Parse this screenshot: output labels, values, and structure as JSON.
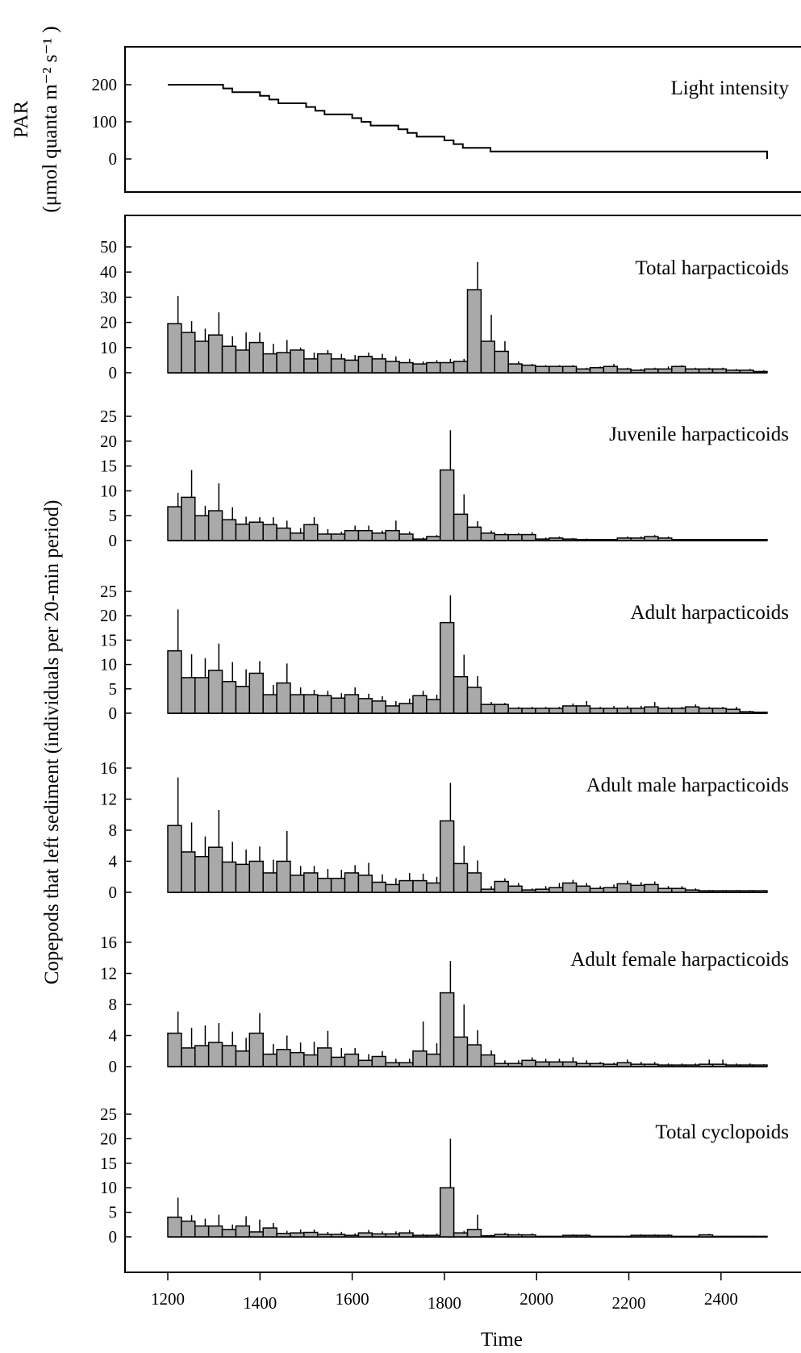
{
  "colors": {
    "bar_fill": "#a9a9a9",
    "line": "#000000",
    "background": "#ffffff"
  },
  "x_axis": {
    "label": "Time",
    "ticks": [
      1200,
      1400,
      1600,
      1800,
      2000,
      2200,
      2400
    ],
    "tick_labels": [
      "1200",
      "1400",
      "1600",
      "1800",
      "2000",
      "2200",
      "2400"
    ]
  },
  "y_axis_labels": {
    "par": "PAR",
    "par_units": "(μmol quanta m⁻² s⁻¹ )",
    "copepods": "Copepods that left sediment (individuals per 20-min period)"
  },
  "chart_data": [
    {
      "type": "line",
      "title": "Light intensity",
      "ylabel": "PAR",
      "yunits": "(μmol quanta m⁻² s⁻¹ )",
      "yticks": [
        0,
        100,
        200
      ],
      "ylim": [
        0,
        200
      ],
      "x": [
        1200,
        1300,
        1320,
        1340,
        1400,
        1420,
        1440,
        1500,
        1520,
        1540,
        1600,
        1620,
        1640,
        1700,
        1720,
        1740,
        1800,
        1820,
        1840,
        1900,
        2500
      ],
      "y": [
        200,
        200,
        190,
        180,
        170,
        160,
        150,
        140,
        130,
        120,
        110,
        100,
        90,
        80,
        70,
        60,
        50,
        40,
        30,
        20,
        0
      ]
    },
    {
      "type": "bar",
      "title": "Total harpacticoids",
      "yticks": [
        0,
        10,
        20,
        30,
        40,
        50
      ],
      "ylim": [
        0,
        50
      ],
      "x_start": 1200,
      "bin_width_min": 20,
      "values": [
        19.5,
        16,
        12.5,
        15,
        10.5,
        9,
        12,
        7.5,
        8,
        9,
        5.5,
        7.5,
        5.5,
        5,
        6.5,
        5.5,
        4.5,
        4,
        3.5,
        4,
        4,
        4.5,
        33,
        12.5,
        8.5,
        3.5,
        3,
        2.5,
        2.5,
        2.5,
        1.5,
        2,
        2.5,
        1.5,
        1,
        1.5,
        1.5,
        2.5,
        1.5,
        1.5,
        1.5,
        1,
        1,
        0.5
      ],
      "errors": [
        11,
        4.5,
        5,
        9,
        4,
        7,
        4,
        4,
        5,
        1,
        2.5,
        1.5,
        2,
        2,
        1.5,
        2,
        2,
        1.5,
        1,
        1,
        1.5,
        1,
        11,
        10.5,
        4,
        1,
        0.5,
        0.5,
        0.5,
        0.5,
        0.5,
        0.5,
        1,
        0.5,
        0.5,
        0.5,
        1,
        0.5,
        0.5,
        0.5,
        0.5,
        0.5,
        0.5,
        0.5
      ]
    },
    {
      "type": "bar",
      "title": "Juvenile harpacticoids",
      "yticks": [
        0,
        5,
        10,
        15,
        20,
        25
      ],
      "ylim": [
        0,
        25
      ],
      "x_start": 1200,
      "bin_width_min": 20,
      "values": [
        6.8,
        8.7,
        5,
        6,
        4.2,
        3.3,
        3.7,
        3.2,
        2.5,
        1.5,
        3.2,
        1.3,
        1.3,
        2,
        2,
        1.5,
        2,
        1.3,
        0.3,
        0.8,
        14.2,
        5.3,
        2.7,
        1.5,
        1.2,
        1.2,
        1.2,
        0.3,
        0.5,
        0.3,
        0.2,
        0.2,
        0.2,
        0.5,
        0.5,
        0.8,
        0.5,
        0.2,
        0.2,
        0.2,
        0.2,
        0.2,
        0.2,
        0.2
      ],
      "errors": [
        2.8,
        5.5,
        2,
        5.5,
        2.5,
        1.5,
        1,
        1.5,
        1.5,
        1,
        1.5,
        1,
        0.5,
        1,
        1,
        0.5,
        2,
        0.5,
        0.3,
        0.3,
        8,
        4,
        1.2,
        0.5,
        0.3,
        0.3,
        0.5,
        0.3,
        0.3,
        0.2,
        0.2,
        0.1,
        0.1,
        0.3,
        0.3,
        0.3,
        0.3,
        0.1,
        0.1,
        0.1,
        0.1,
        0.1,
        0.1,
        0.1
      ]
    },
    {
      "type": "bar",
      "title": "Adult harpacticoids",
      "yticks": [
        0,
        5,
        10,
        15,
        20,
        25
      ],
      "ylim": [
        0,
        25
      ],
      "x_start": 1200,
      "bin_width_min": 20,
      "values": [
        12.8,
        7.3,
        7.3,
        8.8,
        6.5,
        5.5,
        8.2,
        3.8,
        6.2,
        3.8,
        3.8,
        3.6,
        3.1,
        3.8,
        3,
        2.5,
        1.5,
        2,
        3.6,
        2.8,
        18.6,
        7.5,
        5.3,
        1.8,
        1.8,
        1,
        1,
        1,
        1,
        1.5,
        1.5,
        1,
        1,
        1,
        1,
        1.3,
        1,
        1,
        1.3,
        1,
        1,
        0.8,
        0.3,
        0.2
      ],
      "errors": [
        8.5,
        4.8,
        4,
        5.5,
        4,
        3.5,
        2.5,
        2,
        4,
        1.5,
        1,
        1,
        1,
        1.5,
        1,
        1,
        1,
        1,
        1,
        1,
        5.6,
        4.5,
        2.3,
        0.5,
        0.3,
        0.3,
        0.3,
        0.3,
        0.3,
        0.5,
        1,
        0.3,
        0.5,
        0.5,
        0.5,
        1,
        0.3,
        0.3,
        0.5,
        0.3,
        0.3,
        0.5,
        0.2,
        0.1
      ]
    },
    {
      "type": "bar",
      "title": "Adult male harpacticoids",
      "yticks": [
        0,
        4,
        8,
        12,
        16
      ],
      "ylim": [
        0,
        16
      ],
      "x_start": 1200,
      "bin_width_min": 20,
      "values": [
        8.6,
        5.2,
        4.6,
        5.8,
        3.9,
        3.6,
        4,
        2.5,
        4,
        2.2,
        2.5,
        1.8,
        1.8,
        2.5,
        2.2,
        1.3,
        1,
        1.5,
        1.5,
        1.2,
        9.2,
        3.7,
        2.5,
        0.4,
        1.4,
        0.8,
        0.3,
        0.4,
        0.6,
        1.2,
        0.8,
        0.5,
        0.6,
        1.1,
        0.9,
        1,
        0.5,
        0.5,
        0.3,
        0.2,
        0.2,
        0.2,
        0.2,
        0.2
      ],
      "errors": [
        6.2,
        3.8,
        2.6,
        4.8,
        2.6,
        1.9,
        1.9,
        1.7,
        3.9,
        1.2,
        0.9,
        1.2,
        1.1,
        1,
        1.6,
        1,
        0.8,
        1,
        0.9,
        0.8,
        4.9,
        2.3,
        1.6,
        0.4,
        0.4,
        0.4,
        0.2,
        0.4,
        0.6,
        0.4,
        0.4,
        0.3,
        0.4,
        0.4,
        0.4,
        0.4,
        0.3,
        0.3,
        0.2,
        0.1,
        0.1,
        0.1,
        0.1,
        0.1
      ]
    },
    {
      "type": "bar",
      "title": "Adult female harpacticoids",
      "yticks": [
        0,
        4,
        8,
        12,
        16
      ],
      "ylim": [
        0,
        16
      ],
      "x_start": 1200,
      "bin_width_min": 20,
      "values": [
        4.3,
        2.4,
        2.7,
        3.1,
        2.7,
        2,
        4.3,
        1.6,
        2.2,
        1.8,
        1.5,
        2.4,
        1.2,
        1.6,
        0.8,
        1.3,
        0.5,
        0.5,
        2,
        1.6,
        9.5,
        3.8,
        2.8,
        1.5,
        0.4,
        0.4,
        0.8,
        0.6,
        0.6,
        0.6,
        0.4,
        0.4,
        0.3,
        0.5,
        0.3,
        0.3,
        0.2,
        0.2,
        0.2,
        0.3,
        0.3,
        0.2,
        0.2,
        0.2
      ],
      "errors": [
        2.8,
        2.6,
        2.6,
        2.5,
        1.8,
        1.7,
        2.6,
        1.3,
        1.8,
        1.3,
        1.7,
        2.2,
        1.2,
        0.8,
        0.8,
        0.7,
        0.5,
        0.5,
        3.8,
        1.4,
        4.1,
        4.2,
        1.9,
        0.6,
        0.4,
        0.4,
        0.4,
        0.4,
        0.4,
        0.6,
        0.4,
        0.2,
        0.2,
        0.4,
        0.3,
        0.3,
        0.2,
        0.2,
        0.2,
        0.6,
        0.6,
        0.2,
        0.2,
        0.1
      ]
    },
    {
      "type": "bar",
      "title": "Total cyclopoids",
      "yticks": [
        0,
        5,
        10,
        15,
        20,
        25
      ],
      "ylim": [
        0,
        25
      ],
      "x_start": 1200,
      "bin_width_min": 20,
      "values": [
        4,
        3.2,
        2.2,
        2.2,
        1.5,
        2.2,
        1,
        1.8,
        0.7,
        0.8,
        0.9,
        0.5,
        0.5,
        0.3,
        0.8,
        0.6,
        0.6,
        0.8,
        0.3,
        0.3,
        10,
        0.8,
        1.5,
        0.2,
        0.5,
        0.4,
        0.4,
        0.1,
        0.1,
        0.3,
        0.3,
        0.1,
        0.1,
        0.1,
        0.3,
        0.3,
        0.3,
        0.1,
        0.1,
        0.4,
        0.1,
        0.1,
        0.1,
        0.1
      ],
      "errors": [
        4,
        1.2,
        1.5,
        2.3,
        1,
        2,
        2.5,
        1,
        0.5,
        0.7,
        0.6,
        0.5,
        0.5,
        0.4,
        0.6,
        0.5,
        0.5,
        0.6,
        0.3,
        0.4,
        10,
        0.4,
        3,
        0.2,
        0.3,
        0.3,
        0.3,
        0.1,
        0.1,
        0.2,
        0.2,
        0.1,
        0.1,
        0.1,
        0.2,
        0.2,
        0.2,
        0.1,
        0.1,
        0.2,
        0.1,
        0.1,
        0.1,
        0.1
      ]
    }
  ]
}
